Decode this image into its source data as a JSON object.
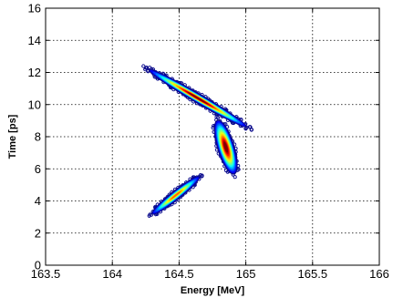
{
  "chart_data": {
    "type": "scatter",
    "xlabel": "Energy [MeV]",
    "ylabel": "Time [ps]",
    "xlim": [
      163.5,
      166
    ],
    "ylim": [
      0,
      16
    ],
    "xticks": [
      163.5,
      164,
      164.5,
      165,
      165.5,
      166
    ],
    "yticks": [
      0,
      2,
      4,
      6,
      8,
      10,
      12,
      14,
      16
    ],
    "xtick_labels": [
      "163.5",
      "164",
      "164.5",
      "165",
      "165.5",
      "166"
    ],
    "ytick_labels": [
      "0",
      "2",
      "4",
      "6",
      "8",
      "10",
      "12",
      "14",
      "16"
    ],
    "grid": true,
    "colormap": "jet",
    "outline_color": "#0a0a8c",
    "clusters": [
      {
        "name": "",
        "start": [
          164.33,
          3.4
        ],
        "end": [
          164.62,
          5.3
        ],
        "width": 0.35,
        "peak": 0.75
      },
      {
        "name": "",
        "start": [
          164.31,
          12.0
        ],
        "end": [
          164.97,
          8.8
        ],
        "width": 0.45,
        "peak": 1.0
      },
      {
        "name": "",
        "start": [
          164.8,
          8.7
        ],
        "end": [
          164.9,
          6.0
        ],
        "width": 0.9,
        "peak": 1.0
      }
    ]
  }
}
